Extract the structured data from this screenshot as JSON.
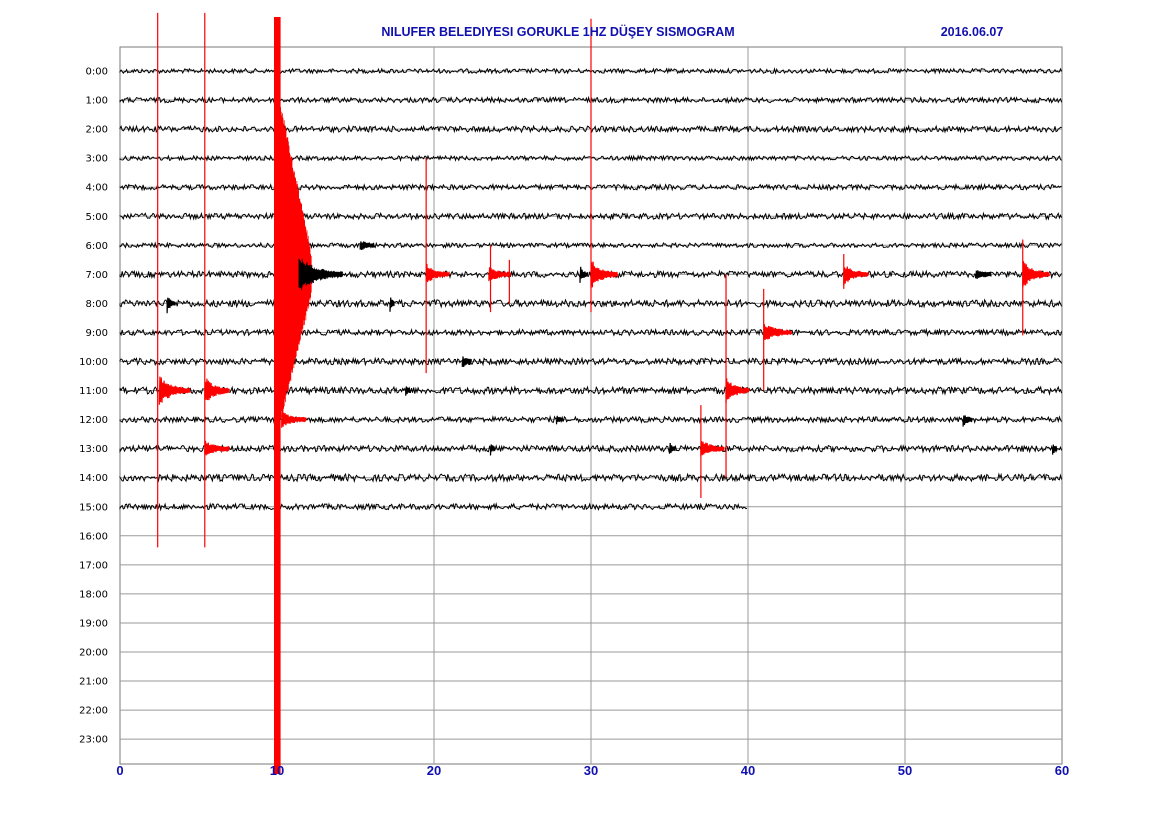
{
  "header": {
    "title": "NILUFER BELEDIYESI GORUKLE 1HZ DÜŞEY SISMOGRAM",
    "date": "2016.06.07"
  },
  "colors": {
    "trace": "#000000",
    "event": "#ff0000",
    "axis_text": "#1010b0",
    "grid": "#9a9a9a"
  },
  "chart_data": {
    "type": "line",
    "title": "NILUFER BELEDIYESI GORUKLE 1HZ DÜŞEY SISMOGRAM",
    "xlabel": "",
    "ylabel": "",
    "xlim": [
      0,
      60
    ],
    "x_ticks": [
      0,
      10,
      20,
      30,
      40,
      50,
      60
    ],
    "x_tick_labels": [
      "0",
      "10",
      "20",
      "30",
      "40",
      "50",
      "60"
    ],
    "grid": true,
    "row_labels": [
      "0:00",
      "1:00",
      "2:00",
      "3:00",
      "4:00",
      "5:00",
      "6:00",
      "7:00",
      "8:00",
      "9:00",
      "10:00",
      "11:00",
      "12:00",
      "13:00",
      "14:00",
      "15:00",
      "16:00",
      "17:00",
      "18:00",
      "19:00",
      "20:00",
      "21:00",
      "22:00",
      "23:00"
    ],
    "rows_recorded": 16,
    "last_row_end_minute": 40,
    "events": [
      {
        "row": 11,
        "minute": 2.5,
        "color": "red",
        "duration_min": 2.0,
        "strength": 0.55
      },
      {
        "row": 11,
        "minute": 5.4,
        "color": "red",
        "duration_min": 1.6,
        "strength": 0.5
      },
      {
        "row": 13,
        "minute": 5.4,
        "color": "red",
        "duration_min": 1.6,
        "strength": 0.25
      },
      {
        "row": 6,
        "minute": 15.3,
        "color": "black",
        "duration_min": 0.9,
        "strength": 0.15
      },
      {
        "row": 7,
        "minute": 10.2,
        "color": "black",
        "duration_min": 4.0,
        "strength": 0.55
      },
      {
        "row": 7,
        "minute": 19.5,
        "color": "red",
        "duration_min": 1.5,
        "strength": 0.35
      },
      {
        "row": 7,
        "minute": 23.5,
        "color": "red",
        "duration_min": 1.4,
        "strength": 0.25
      },
      {
        "row": 7,
        "minute": 29.3,
        "color": "black",
        "duration_min": 0.5,
        "strength": 0.3
      },
      {
        "row": 7,
        "minute": 30.0,
        "color": "red",
        "duration_min": 1.7,
        "strength": 0.55
      },
      {
        "row": 7,
        "minute": 46.1,
        "color": "red",
        "duration_min": 1.6,
        "strength": 0.35
      },
      {
        "row": 7,
        "minute": 54.5,
        "color": "black",
        "duration_min": 1.0,
        "strength": 0.15
      },
      {
        "row": 7,
        "minute": 57.5,
        "color": "red",
        "duration_min": 1.7,
        "strength": 0.5
      },
      {
        "row": 8,
        "minute": 3.0,
        "color": "black",
        "duration_min": 0.5,
        "strength": 0.3
      },
      {
        "row": 8,
        "minute": 17.2,
        "color": "black",
        "duration_min": 0.3,
        "strength": 0.25
      },
      {
        "row": 9,
        "minute": 41.0,
        "color": "red",
        "duration_min": 1.8,
        "strength": 0.35
      },
      {
        "row": 10,
        "minute": 21.8,
        "color": "black",
        "duration_min": 0.6,
        "strength": 0.2
      },
      {
        "row": 11,
        "minute": 18.2,
        "color": "black",
        "duration_min": 0.3,
        "strength": 0.15
      },
      {
        "row": 11,
        "minute": 38.6,
        "color": "red",
        "duration_min": 1.5,
        "strength": 0.45
      },
      {
        "row": 12,
        "minute": 10.3,
        "color": "red",
        "duration_min": 1.6,
        "strength": 0.25
      },
      {
        "row": 12,
        "minute": 27.8,
        "color": "black",
        "duration_min": 0.4,
        "strength": 0.1
      },
      {
        "row": 12,
        "minute": 53.7,
        "color": "black",
        "duration_min": 0.6,
        "strength": 0.2
      },
      {
        "row": 13,
        "minute": 23.6,
        "color": "black",
        "duration_min": 0.3,
        "strength": 0.2
      },
      {
        "row": 13,
        "minute": 35.0,
        "color": "black",
        "duration_min": 0.4,
        "strength": 0.2
      },
      {
        "row": 13,
        "minute": 37.0,
        "color": "red",
        "duration_min": 1.5,
        "strength": 0.3
      },
      {
        "row": 13,
        "minute": 59.4,
        "color": "black",
        "duration_min": 0.3,
        "strength": 0.25
      }
    ],
    "spikes": [
      {
        "minute": 2.4,
        "from_row": -2.0,
        "to_row": 16.4,
        "color": "red"
      },
      {
        "minute": 5.4,
        "from_row": -2.0,
        "to_row": 16.4,
        "color": "red"
      },
      {
        "minute": 30.0,
        "from_row": -1.8,
        "to_row": 8.3,
        "color": "red"
      },
      {
        "minute": 19.5,
        "from_row": 3.0,
        "to_row": 10.4,
        "color": "red"
      },
      {
        "minute": 23.6,
        "from_row": 6.0,
        "to_row": 8.3,
        "color": "red"
      },
      {
        "minute": 24.8,
        "from_row": 6.5,
        "to_row": 8.0,
        "color": "red"
      },
      {
        "minute": 37.0,
        "from_row": 11.5,
        "to_row": 14.7,
        "color": "red"
      },
      {
        "minute": 38.6,
        "from_row": 7.0,
        "to_row": 14.0,
        "color": "red"
      },
      {
        "minute": 41.0,
        "from_row": 7.5,
        "to_row": 11.0,
        "color": "red"
      },
      {
        "minute": 46.1,
        "from_row": 6.3,
        "to_row": 7.5,
        "color": "red"
      },
      {
        "minute": 57.5,
        "from_row": 5.8,
        "to_row": 9.1,
        "color": "red"
      }
    ],
    "big_event": {
      "minute": 10.0,
      "width_min": 1.2,
      "from_row": -2.0,
      "to_row": 24.2,
      "color": "red"
    }
  }
}
